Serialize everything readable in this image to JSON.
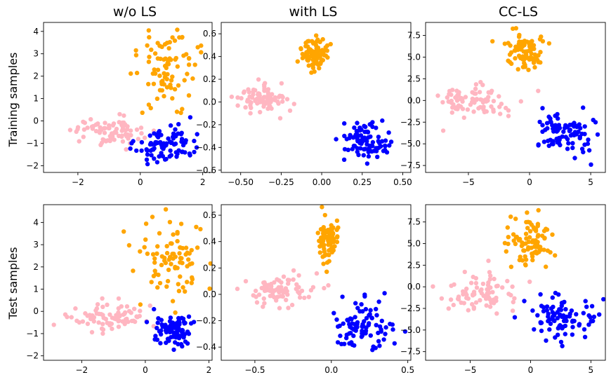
{
  "figure": {
    "column_titles": [
      "w/o LS",
      "with LS",
      "CC-LS"
    ],
    "row_labels": [
      "Training samples",
      "Test samples"
    ]
  },
  "colors": {
    "class_a": "#ffb6c1",
    "class_b": "#ffa500",
    "class_c": "#0000ff"
  },
  "chart_data": [
    {
      "type": "scatter",
      "row": "Training samples",
      "column": "w/o LS",
      "xlim": [
        -3.1,
        2.3
      ],
      "ylim": [
        -2.3,
        4.4
      ],
      "xticks": [
        -2,
        0,
        2
      ],
      "yticks": [
        -2,
        -1,
        0,
        1,
        2,
        3,
        4
      ],
      "xtick_labels": [
        "−2",
        "0",
        "2"
      ],
      "ytick_labels": [
        "−2",
        "−1",
        "0",
        "1",
        "2",
        "3",
        "4"
      ],
      "series": [
        {
          "color": "#ffb6c1",
          "center": [
            -1.0,
            -0.45
          ],
          "spread": [
            0.55,
            0.33
          ],
          "n": 80
        },
        {
          "color": "#ffa500",
          "center": [
            0.85,
            2.4
          ],
          "spread": [
            0.5,
            0.9
          ],
          "n": 85
        },
        {
          "color": "#0000ff",
          "center": [
            0.85,
            -1.05
          ],
          "spread": [
            0.45,
            0.45
          ],
          "n": 90
        }
      ]
    },
    {
      "type": "scatter",
      "row": "Training samples",
      "column": "with LS",
      "xlim": [
        -0.62,
        0.55
      ],
      "ylim": [
        -0.62,
        0.7
      ],
      "xticks": [
        -0.5,
        -0.25,
        0.0,
        0.25,
        0.5
      ],
      "yticks": [
        -0.6,
        -0.4,
        -0.2,
        0.0,
        0.2,
        0.4,
        0.6
      ],
      "xtick_labels": [
        "−0.50",
        "−0.25",
        "0.00",
        "0.25",
        "0.50"
      ],
      "ytick_labels": [
        "−0.6",
        "−0.4",
        "−0.2",
        "0.0",
        "0.2",
        "0.4",
        "0.6"
      ],
      "series": [
        {
          "color": "#ffb6c1",
          "center": [
            -0.38,
            0.02
          ],
          "spread": [
            0.08,
            0.06
          ],
          "n": 80
        },
        {
          "color": "#ffa500",
          "center": [
            -0.05,
            0.42
          ],
          "spread": [
            0.04,
            0.06
          ],
          "n": 85
        },
        {
          "color": "#0000ff",
          "center": [
            0.27,
            -0.34
          ],
          "spread": [
            0.07,
            0.08
          ],
          "n": 90
        }
      ]
    },
    {
      "type": "scatter",
      "row": "Training samples",
      "column": "CC-LS",
      "xlim": [
        -8.5,
        6.2
      ],
      "ylim": [
        -8.3,
        9.0
      ],
      "xticks": [
        -5,
        0,
        5
      ],
      "yticks": [
        -7.5,
        -5.0,
        -2.5,
        0.0,
        2.5,
        5.0,
        7.5
      ],
      "xtick_labels": [
        "−5",
        "0",
        "5"
      ],
      "ytick_labels": [
        "−7.5",
        "−5.0",
        "−2.5",
        "0.0",
        "2.5",
        "5.0",
        "7.5"
      ],
      "series": [
        {
          "color": "#ffb6c1",
          "center": [
            -4.5,
            0.0
          ],
          "spread": [
            1.7,
            1.0
          ],
          "n": 80
        },
        {
          "color": "#ffa500",
          "center": [
            -0.3,
            5.5
          ],
          "spread": [
            0.9,
            1.0
          ],
          "n": 85
        },
        {
          "color": "#0000ff",
          "center": [
            3.0,
            -3.8
          ],
          "spread": [
            1.2,
            1.1
          ],
          "n": 90
        }
      ]
    },
    {
      "type": "scatter",
      "row": "Test samples",
      "column": "w/o LS",
      "xlim": [
        -3.2,
        2.1
      ],
      "ylim": [
        -2.2,
        4.8
      ],
      "xticks": [
        -2,
        0,
        2
      ],
      "yticks": [
        -2,
        -1,
        0,
        1,
        2,
        3,
        4
      ],
      "xtick_labels": [
        "−2",
        "0",
        "2"
      ],
      "ytick_labels": [
        "−2",
        "−1",
        "0",
        "1",
        "2",
        "3",
        "4"
      ],
      "series": [
        {
          "color": "#ffb6c1",
          "center": [
            -1.1,
            -0.3
          ],
          "spread": [
            0.65,
            0.3
          ],
          "n": 80
        },
        {
          "color": "#ffa500",
          "center": [
            0.8,
            2.2
          ],
          "spread": [
            0.5,
            0.85
          ],
          "n": 85
        },
        {
          "color": "#0000ff",
          "center": [
            0.85,
            -0.85
          ],
          "spread": [
            0.3,
            0.4
          ],
          "n": 90
        }
      ]
    },
    {
      "type": "scatter",
      "row": "Test samples",
      "column": "with LS",
      "xlim": [
        -0.72,
        0.52
      ],
      "ylim": [
        -0.5,
        0.68
      ],
      "xticks": [
        -0.5,
        0.0,
        0.5
      ],
      "yticks": [
        -0.4,
        -0.2,
        0.0,
        0.2,
        0.4,
        0.6
      ],
      "xtick_labels": [
        "−0.5",
        "0.0",
        "0.5"
      ],
      "ytick_labels": [
        "−0.4",
        "−0.2",
        "0.0",
        "0.2",
        "0.4",
        "0.6"
      ],
      "series": [
        {
          "color": "#ffb6c1",
          "center": [
            -0.35,
            0.03
          ],
          "spread": [
            0.12,
            0.06
          ],
          "n": 80
        },
        {
          "color": "#ffa500",
          "center": [
            -0.02,
            0.4
          ],
          "spread": [
            0.03,
            0.07
          ],
          "n": 85
        },
        {
          "color": "#0000ff",
          "center": [
            0.18,
            -0.25
          ],
          "spread": [
            0.1,
            0.09
          ],
          "n": 90
        }
      ]
    },
    {
      "type": "scatter",
      "row": "Test samples",
      "column": "CC-LS",
      "xlim": [
        -8.7,
        6.2
      ],
      "ylim": [
        -8.5,
        9.5
      ],
      "xticks": [
        -5,
        0,
        5
      ],
      "yticks": [
        -7.5,
        -5.0,
        -2.5,
        0.0,
        2.5,
        5.0,
        7.5
      ],
      "xtick_labels": [
        "−5",
        "0",
        "5"
      ],
      "ytick_labels": [
        "−7.5",
        "−5.0",
        "−2.5",
        "0.0",
        "2.5",
        "5.0",
        "7.5"
      ],
      "series": [
        {
          "color": "#ffb6c1",
          "center": [
            -4.0,
            -0.5
          ],
          "spread": [
            1.8,
            1.2
          ],
          "n": 80
        },
        {
          "color": "#ffa500",
          "center": [
            0.0,
            5.0
          ],
          "spread": [
            1.0,
            1.4
          ],
          "n": 85
        },
        {
          "color": "#0000ff",
          "center": [
            2.8,
            -3.5
          ],
          "spread": [
            1.5,
            1.3
          ],
          "n": 90
        }
      ]
    }
  ]
}
